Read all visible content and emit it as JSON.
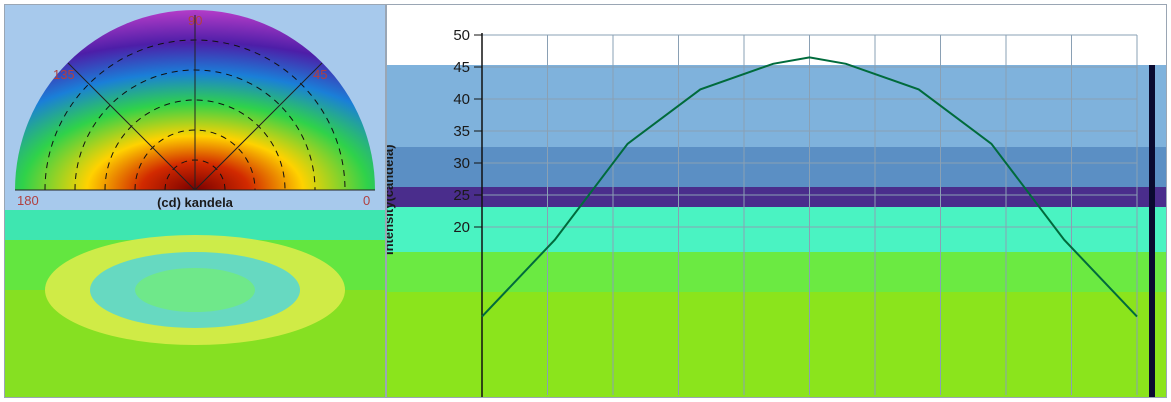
{
  "polar": {
    "angle_labels": {
      "a90": "90",
      "a135": "135",
      "a45": "45",
      "a180": "180",
      "a0": "0"
    },
    "center_label": "(cd) kandela"
  },
  "chart_data": {
    "type": "line",
    "ylabel": "Intensity(candela)",
    "xlabel": "",
    "ylim": [
      0,
      50
    ],
    "yticks": [
      20,
      25,
      30,
      35,
      40,
      45,
      50
    ],
    "series": [
      {
        "values_x": [
          0,
          20,
          40,
          60,
          80,
          90,
          100,
          120,
          140,
          160,
          180
        ],
        "values_y": [
          6,
          18,
          33,
          41.5,
          45.5,
          46.5,
          45.5,
          41.5,
          33,
          18,
          6
        ]
      }
    ],
    "xlim": [
      0,
      180
    ]
  },
  "colors": {
    "curve": "#006b3c",
    "band_blue": "#3a6fa8",
    "band_cyan": "#46f5c8",
    "band_green": "#72f04a",
    "band_lime": "#8fe81a"
  }
}
